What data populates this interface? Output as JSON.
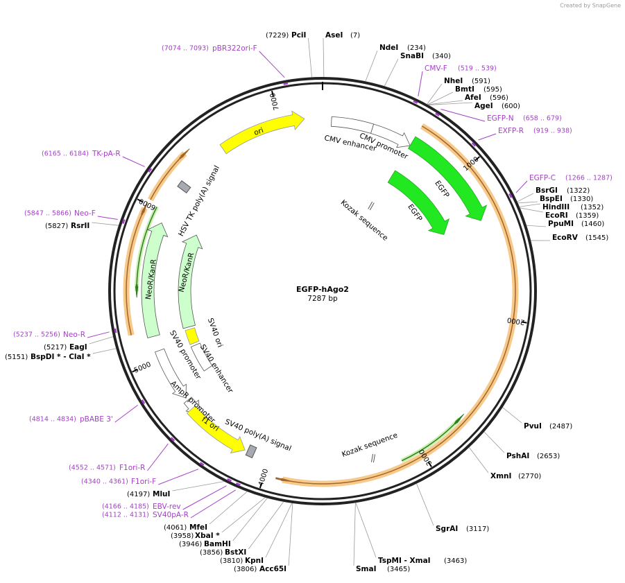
{
  "credit": "Created by SnapGene",
  "title": "EGFP-hAgo2",
  "length": "7287 bp",
  "ticks": [
    "1000",
    "2000",
    "3000",
    "4000",
    "5000",
    "6000",
    "7000"
  ],
  "sites": [
    {
      "name": "PciI",
      "position": "(7229)"
    },
    {
      "name": "AseI",
      "position": "(7)"
    },
    {
      "name": "NdeI",
      "position": "(234)"
    },
    {
      "name": "SnaBI",
      "position": "(340)"
    },
    {
      "name": "NheI",
      "position": "(591)"
    },
    {
      "name": "BmtI",
      "position": "(595)"
    },
    {
      "name": "AfeI",
      "position": "(596)"
    },
    {
      "name": "AgeI",
      "position": "(600)"
    },
    {
      "name": "BsrGI",
      "position": "(1322)"
    },
    {
      "name": "BspEI",
      "position": "(1330)"
    },
    {
      "name": "HindIII",
      "position": "(1352)"
    },
    {
      "name": "EcoRI",
      "position": "(1359)"
    },
    {
      "name": "PpuMI",
      "position": "(1460)"
    },
    {
      "name": "EcoRV",
      "position": "(1545)"
    },
    {
      "name": "PvuI",
      "position": "(2487)"
    },
    {
      "name": "PshAI",
      "position": "(2653)"
    },
    {
      "name": "XmnI",
      "position": "(2770)"
    },
    {
      "name": "SgrAI",
      "position": "(3117)"
    },
    {
      "name": "TspMI  - XmaI",
      "position": "(3463)"
    },
    {
      "name": "SmaI",
      "position": "(3465)"
    },
    {
      "name": "Acc65I",
      "position": "(3806)"
    },
    {
      "name": "KpnI",
      "position": "(3810)"
    },
    {
      "name": "BstXI",
      "position": "(3856)"
    },
    {
      "name": "BamHI",
      "position": "(3946)"
    },
    {
      "name": "XbaI *",
      "position": "(3958)"
    },
    {
      "name": "MfeI",
      "position": "(4061)"
    },
    {
      "name": "MluI",
      "position": "(4197)"
    },
    {
      "name": "BspDI *  - ClaI *",
      "position": "(5151)"
    },
    {
      "name": "EagI",
      "position": "(5217)"
    },
    {
      "name": "RsrII",
      "position": "(5827)"
    }
  ],
  "primers": [
    {
      "name": "pBR322ori-F",
      "range": "(7074 .. 7093)"
    },
    {
      "name": "CMV-F",
      "range": "(519 .. 539)"
    },
    {
      "name": "EGFP-N",
      "range": "(658 .. 679)"
    },
    {
      "name": "EXFP-R",
      "range": "(919 .. 938)"
    },
    {
      "name": "EGFP-C",
      "range": "(1266 .. 1287)"
    },
    {
      "name": "TK-pA-R",
      "range": "(6165 .. 6184)"
    },
    {
      "name": "Neo-F",
      "range": "(5847 .. 5866)"
    },
    {
      "name": "Neo-R",
      "range": "(5237 .. 5256)"
    },
    {
      "name": "pBABE 3'",
      "range": "(4814 .. 4834)"
    },
    {
      "name": "F1ori-R",
      "range": "(4552 .. 4571)"
    },
    {
      "name": "F1ori-F",
      "range": "(4340 .. 4361)"
    },
    {
      "name": "EBV-rev",
      "range": "(4166 .. 4185)"
    },
    {
      "name": "SV40pA-R",
      "range": "(4112 .. 4131)"
    }
  ],
  "features": [
    "ori",
    "CMV enhancer",
    "CMV promoter",
    "EGFP",
    "EGFP",
    "Kozak sequence",
    "Kozak sequence",
    "HSV TK poly(A) signal",
    "NeoR/KanR",
    "NeoR/KanR",
    "SV40 ori",
    "SV40 enhancer",
    "SV40 promoter",
    "AmpR promoter",
    "f1 ori",
    "SV40 poly(A) signal"
  ]
}
